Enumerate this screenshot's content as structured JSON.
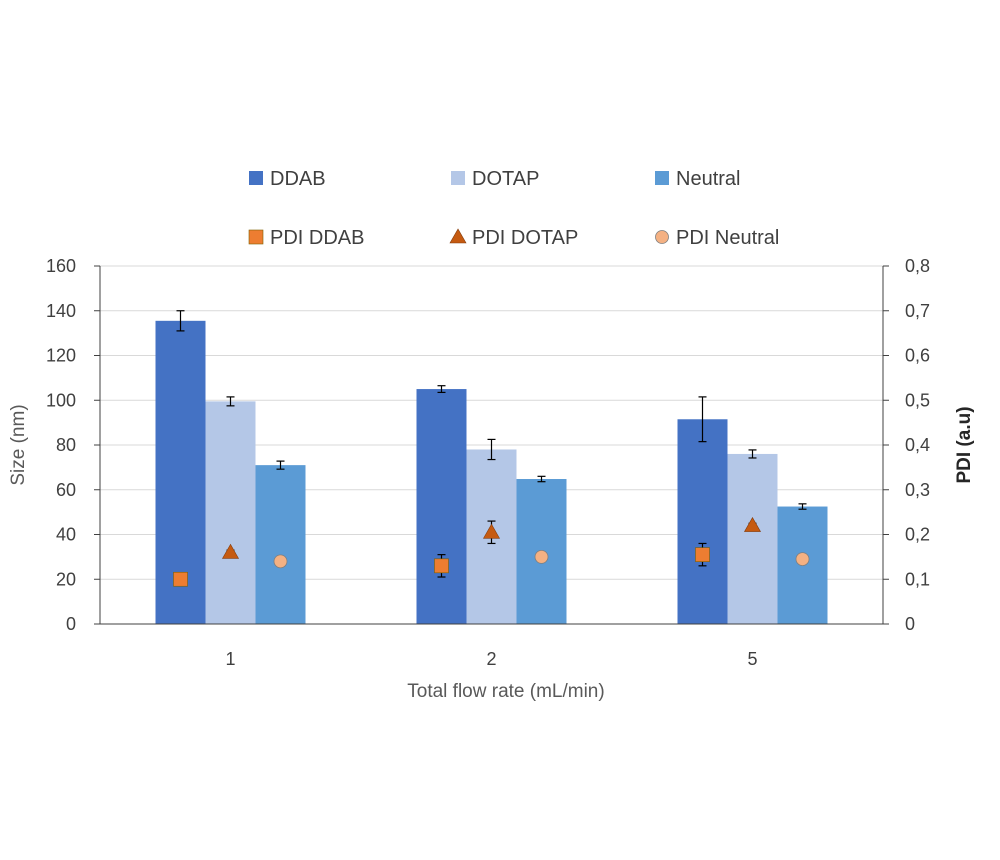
{
  "chart_data": {
    "type": "bar",
    "categories": [
      "1",
      "2",
      "5"
    ],
    "xlabel": "Total flow rate (mL/min)",
    "ylabel": "Size (nm)",
    "y2label": "PDI (a.u)",
    "ylim": [
      0,
      160
    ],
    "y2lim": [
      0,
      0.8
    ],
    "yticks": [
      "0",
      "20",
      "40",
      "60",
      "80",
      "100",
      "120",
      "140",
      "160"
    ],
    "y2ticks": [
      "0",
      "0,1",
      "0,2",
      "0,3",
      "0,4",
      "0,5",
      "0,6",
      "0,7",
      "0,8"
    ],
    "grid": true,
    "legend_position": "top",
    "series": [
      {
        "name": "DDAB",
        "kind": "bar",
        "axis": "left",
        "color": "#4472C4",
        "values": [
          135.5,
          105,
          91.5
        ],
        "errors": [
          4.5,
          1.5,
          10
        ]
      },
      {
        "name": "DOTAP",
        "kind": "bar",
        "axis": "left",
        "color": "#B4C7E7",
        "values": [
          99.5,
          78,
          76
        ],
        "errors": [
          2,
          4.5,
          1.8
        ]
      },
      {
        "name": "Neutral",
        "kind": "bar",
        "axis": "left",
        "color": "#5B9BD5",
        "values": [
          71,
          64.8,
          52.5
        ],
        "errors": [
          1.8,
          1.2,
          1.2
        ]
      },
      {
        "name": "PDI DDAB",
        "kind": "scatter",
        "marker": "square",
        "axis": "right",
        "color": "#ED7D31",
        "values": [
          0.1,
          0.13,
          0.155
        ],
        "errors": [
          0.005,
          0.025,
          0.025
        ]
      },
      {
        "name": "PDI DOTAP",
        "kind": "scatter",
        "marker": "triangle",
        "axis": "right",
        "color": "#C55A11",
        "values": [
          0.16,
          0.205,
          0.22
        ],
        "errors": [
          0.005,
          0.025,
          0.005
        ]
      },
      {
        "name": "PDI Neutral",
        "kind": "scatter",
        "marker": "circle",
        "axis": "right",
        "color": "#F4B183",
        "values": [
          0.14,
          0.15,
          0.145
        ],
        "errors": [
          0,
          0,
          0
        ]
      }
    ]
  }
}
